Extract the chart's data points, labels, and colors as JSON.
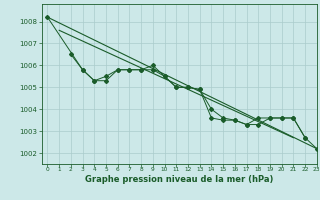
{
  "title": "Graphe pression niveau de la mer (hPa)",
  "bg_color": "#cce8e8",
  "grid_color": "#aacccc",
  "line_color": "#1a5c2a",
  "xlim": [
    -0.5,
    23
  ],
  "ylim": [
    1001.5,
    1008.8
  ],
  "yticks": [
    1002,
    1003,
    1004,
    1005,
    1006,
    1007,
    1008
  ],
  "xticks": [
    0,
    1,
    2,
    3,
    4,
    5,
    6,
    7,
    8,
    9,
    10,
    11,
    12,
    13,
    14,
    15,
    16,
    17,
    18,
    19,
    20,
    21,
    22,
    23
  ],
  "series": {
    "s1": {
      "x": [
        0,
        23
      ],
      "y": [
        1008.2,
        1002.2
      ]
    },
    "s2": {
      "x": [
        1,
        21
      ],
      "y": [
        1007.6,
        1002.7
      ]
    },
    "s3": {
      "x": [
        2,
        3,
        4,
        5,
        6,
        7,
        8,
        9,
        10,
        11,
        12,
        13,
        14,
        15,
        16,
        17,
        18,
        19,
        20,
        21,
        22
      ],
      "y": [
        1006.5,
        1005.8,
        1005.3,
        1005.3,
        1005.8,
        1005.8,
        1005.8,
        1005.8,
        1005.5,
        1005.0,
        1005.0,
        1004.9,
        1003.6,
        1003.5,
        1003.5,
        1003.3,
        1003.6,
        1003.6,
        1003.6,
        1003.6,
        1002.7
      ]
    },
    "s4": {
      "x": [
        0,
        3,
        4,
        5,
        6,
        7,
        8,
        9,
        10,
        11,
        12,
        13,
        14,
        15,
        16,
        17,
        18,
        19,
        20,
        21,
        22,
        23
      ],
      "y": [
        1008.2,
        1005.8,
        1005.3,
        1005.5,
        1005.8,
        1005.8,
        1005.8,
        1006.0,
        1005.5,
        1005.0,
        1005.0,
        1004.9,
        1004.0,
        1003.6,
        1003.5,
        1003.3,
        1003.3,
        1003.6,
        1003.6,
        1003.6,
        1002.7,
        1002.2
      ]
    }
  }
}
